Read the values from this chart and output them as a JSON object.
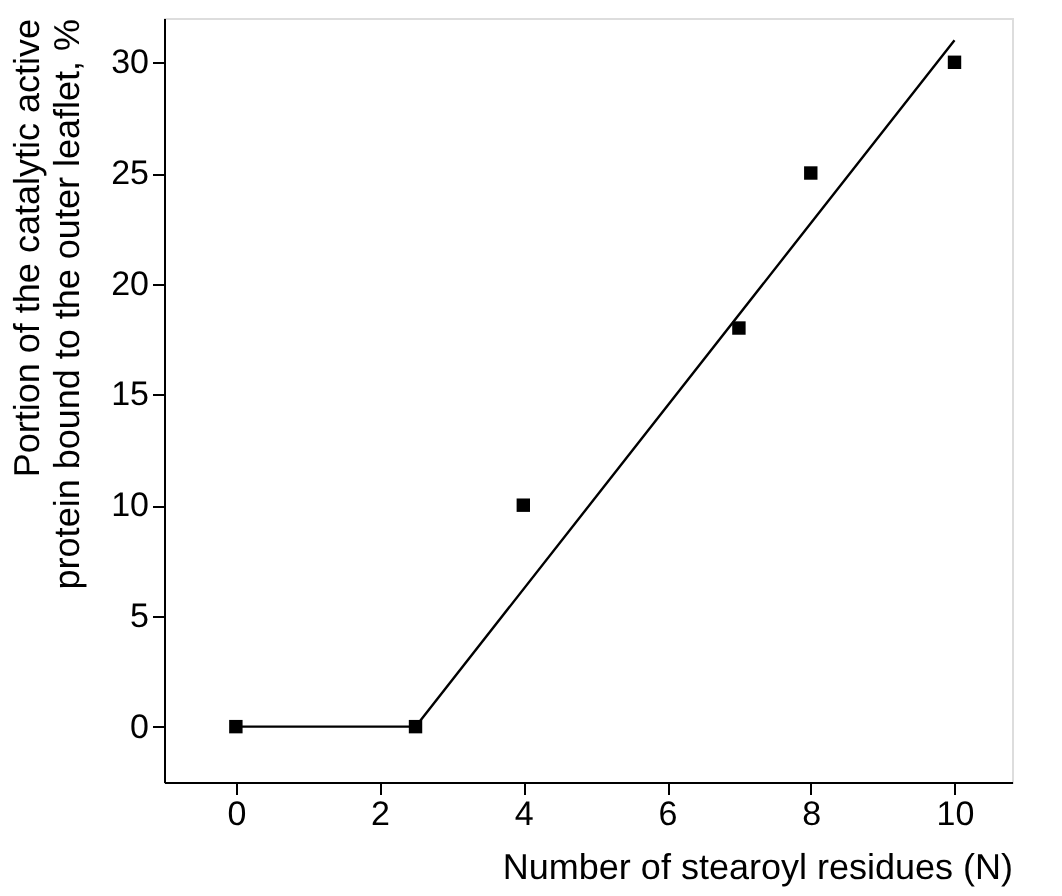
{
  "chart_data": {
    "type": "scatter",
    "xlabel": "Number of stearoyl residues (N)",
    "ylabel": "Portion of the catalytic active\nprotein bound to the outer leaflet, %",
    "xlim": [
      -1,
      10.8
    ],
    "ylim": [
      -2.5,
      32
    ],
    "xticks": [
      0,
      2,
      4,
      6,
      8,
      10
    ],
    "yticks": [
      0,
      5,
      10,
      15,
      20,
      25,
      30
    ],
    "grid": false,
    "marker": "square",
    "series": [
      {
        "color": "#000000",
        "x": [
          0,
          2.5,
          4,
          7,
          8,
          10
        ],
        "values": [
          0,
          0,
          10,
          18,
          25,
          30
        ]
      },
      {
        "type": "line",
        "color": "#000000",
        "marker": "none",
        "x": [
          0,
          2.5,
          10
        ],
        "values": [
          0,
          0,
          31
        ]
      }
    ]
  }
}
